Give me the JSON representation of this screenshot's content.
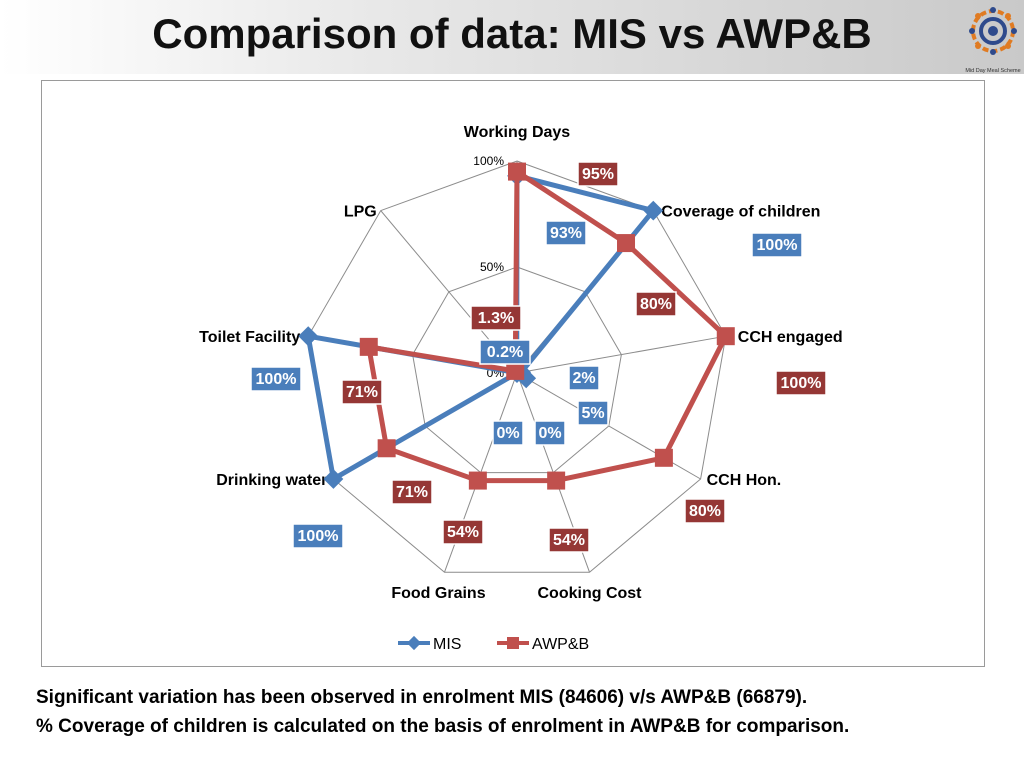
{
  "slide": {
    "title": "Comparison of data: MIS vs AWP&B",
    "logo_text": "Mid Day Meal Scheme",
    "footer_lines": [
      "Significant variation has been observed in enrolment MIS (84606) v/s AWP&B (66879).",
      "% Coverage of children is calculated on the basis of enrolment in AWP&B for comparison."
    ]
  },
  "chart_data": {
    "type": "radar",
    "categories": [
      "Working Days",
      "Coverage of children",
      "CCH engaged",
      "CCH Hon.",
      "Cooking Cost",
      "Food Grains",
      "Drinking water",
      "Toilet Facility",
      "LPG"
    ],
    "radial_ticks": [
      "0%",
      "50%",
      "100%"
    ],
    "rlim": [
      0,
      100
    ],
    "grid": true,
    "legend_position": "bottom",
    "series": [
      {
        "name": "MIS",
        "color": "#4a7ebb",
        "values": [
          93,
          100,
          2,
          5,
          0,
          0,
          100,
          100,
          0.2
        ],
        "labels": [
          "93%",
          "100%",
          "2%",
          "5%",
          "0%",
          "0%",
          "100%",
          "100%",
          "0.2%"
        ]
      },
      {
        "name": "AWP&B",
        "color": "#c0504d",
        "label_color": "#953735",
        "values": [
          95,
          80,
          100,
          80,
          54,
          54,
          71,
          71,
          1.3
        ],
        "labels": [
          "95%",
          "80%",
          "100%",
          "80%",
          "54%",
          "54%",
          "71%",
          "71%",
          "1.3%"
        ]
      }
    ]
  }
}
